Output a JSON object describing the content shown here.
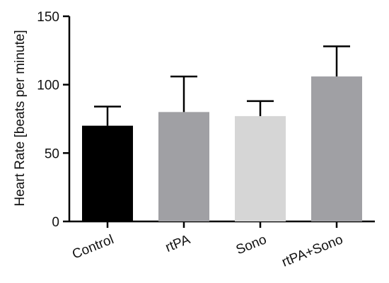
{
  "chart_data": {
    "type": "bar",
    "title": "",
    "xlabel": "",
    "ylabel": "Heart Rate [beats per minute]",
    "ylim": [
      0,
      150
    ],
    "yticks": [
      0,
      50,
      100,
      150
    ],
    "categories": [
      "Control",
      "rtPA",
      "Sono",
      "rtPA+Sono"
    ],
    "values": [
      70,
      80,
      77,
      106
    ],
    "error_upper": [
      84,
      106,
      88,
      128
    ],
    "bar_colors": [
      "#000000",
      "#a0a0a4",
      "#d6d6d6",
      "#a0a0a4"
    ],
    "grid": false
  }
}
